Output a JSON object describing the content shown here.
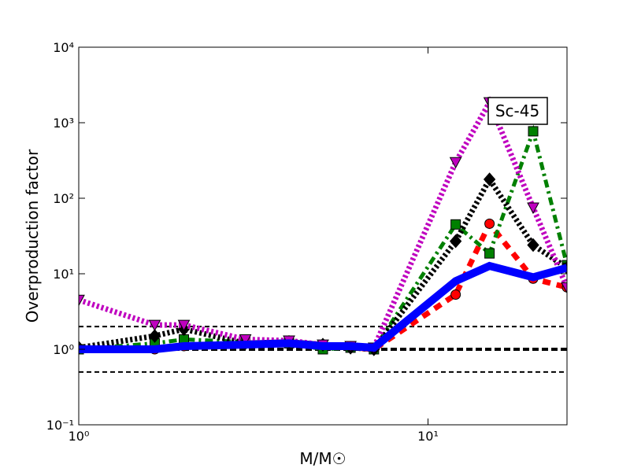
{
  "chart_data": {
    "type": "line",
    "log_x": true,
    "log_y": true,
    "x_label": "M/M☉",
    "y_label": "Overproduction factor",
    "annotation": "Sc-45",
    "x": [
      1,
      1.65,
      2,
      3,
      4,
      5,
      6,
      7,
      12,
      15,
      20,
      25
    ],
    "xlim": [
      1,
      25
    ],
    "ylim": [
      0.1,
      10000
    ],
    "xticks": [
      {
        "value": 1,
        "label": "10⁰"
      },
      {
        "value": 10,
        "label": "10¹"
      }
    ],
    "yticks": [
      {
        "value": 0.1,
        "label": "10⁻¹"
      },
      {
        "value": 1,
        "label": "10⁰"
      },
      {
        "value": 10,
        "label": "10¹"
      },
      {
        "value": 100,
        "label": "10²"
      },
      {
        "value": 1000,
        "label": "10³"
      },
      {
        "value": 10000,
        "label": "10⁴"
      }
    ],
    "hlines": [
      0.5,
      1,
      2
    ],
    "series": [
      {
        "color": "#ff0000",
        "linestyle": "dashed",
        "marker": "circle",
        "values": [
          1.0,
          1.0,
          1.1,
          1.2,
          1.2,
          1.1,
          1.05,
          1.0,
          5.3,
          46,
          8.6,
          6.6
        ]
      },
      {
        "color": "#008000",
        "linestyle": "dashdot",
        "marker": "square",
        "values": [
          1.0,
          1.2,
          1.35,
          1.25,
          1.2,
          1.0,
          1.05,
          1.0,
          45,
          18.6,
          770,
          13
        ]
      },
      {
        "color": "#000000",
        "linestyle": "dotted",
        "marker": "diamond",
        "values": [
          1.05,
          1.5,
          1.85,
          1.2,
          1.25,
          1.15,
          1.05,
          1.0,
          27,
          178,
          24,
          12
        ]
      },
      {
        "color": "#bf00bf",
        "linestyle": "dotted",
        "marker": "triangle_down",
        "values": [
          4.5,
          2.1,
          2.1,
          1.35,
          1.3,
          1.15,
          1.1,
          1.05,
          300,
          1860,
          75,
          6.6
        ]
      },
      {
        "color": "#0000ff",
        "linestyle": "solid",
        "values": [
          1.0,
          1.0,
          1.1,
          1.15,
          1.2,
          1.1,
          1.1,
          1.05,
          8,
          12.7,
          9,
          12
        ]
      }
    ]
  }
}
